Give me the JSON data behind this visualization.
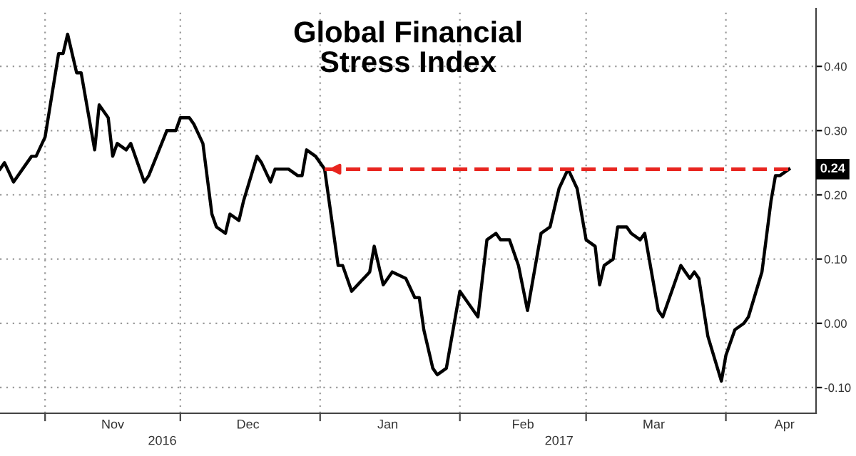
{
  "chart_data": {
    "type": "line",
    "title": "Global Financial\nStress Index",
    "series": [
      {
        "color": "#000000",
        "x": [
          "2016-10-22",
          "2016-10-23",
          "2016-10-25",
          "2016-10-27",
          "2016-10-29",
          "2016-10-30",
          "2016-11-01",
          "2016-11-04",
          "2016-11-05",
          "2016-11-06",
          "2016-11-08",
          "2016-11-09",
          "2016-11-11",
          "2016-11-12",
          "2016-11-13",
          "2016-11-15",
          "2016-11-16",
          "2016-11-17",
          "2016-11-19",
          "2016-11-20",
          "2016-11-23",
          "2016-11-24",
          "2016-11-28",
          "2016-11-30",
          "2016-12-01",
          "2016-12-03",
          "2016-12-04",
          "2016-12-06",
          "2016-12-08",
          "2016-12-09",
          "2016-12-11",
          "2016-12-12",
          "2016-12-14",
          "2016-12-15",
          "2016-12-18",
          "2016-12-19",
          "2016-12-21",
          "2016-12-22",
          "2016-12-25",
          "2016-12-27",
          "2016-12-28",
          "2016-12-29",
          "2016-12-31",
          "2017-01-02",
          "2017-01-05",
          "2017-01-06",
          "2017-01-08",
          "2017-01-12",
          "2017-01-13",
          "2017-01-15",
          "2017-01-17",
          "2017-01-20",
          "2017-01-22",
          "2017-01-23",
          "2017-01-24",
          "2017-01-26",
          "2017-01-27",
          "2017-01-29",
          "2017-02-01",
          "2017-02-02",
          "2017-02-05",
          "2017-02-07",
          "2017-02-09",
          "2017-02-10",
          "2017-02-12",
          "2017-02-14",
          "2017-02-16",
          "2017-02-19",
          "2017-02-21",
          "2017-02-23",
          "2017-02-25",
          "2017-02-27",
          "2017-03-01",
          "2017-03-03",
          "2017-03-04",
          "2017-03-05",
          "2017-03-07",
          "2017-03-08",
          "2017-03-10",
          "2017-03-11",
          "2017-03-13",
          "2017-03-14",
          "2017-03-17",
          "2017-03-18",
          "2017-03-22",
          "2017-03-24",
          "2017-03-25",
          "2017-03-26",
          "2017-03-28",
          "2017-03-31",
          "2017-04-01",
          "2017-04-03",
          "2017-04-05",
          "2017-04-06",
          "2017-04-09",
          "2017-04-11",
          "2017-04-12",
          "2017-04-13",
          "2017-04-15"
        ],
        "values": [
          0.24,
          0.25,
          0.22,
          0.24,
          0.26,
          0.26,
          0.29,
          0.42,
          0.42,
          0.45,
          0.39,
          0.39,
          0.31,
          0.27,
          0.34,
          0.32,
          0.26,
          0.28,
          0.27,
          0.28,
          0.22,
          0.23,
          0.3,
          0.3,
          0.32,
          0.32,
          0.31,
          0.28,
          0.17,
          0.15,
          0.14,
          0.17,
          0.16,
          0.19,
          0.26,
          0.25,
          0.22,
          0.24,
          0.24,
          0.23,
          0.23,
          0.27,
          0.26,
          0.24,
          0.09,
          0.09,
          0.05,
          0.08,
          0.12,
          0.06,
          0.08,
          0.07,
          0.04,
          0.04,
          -0.01,
          -0.07,
          -0.08,
          -0.07,
          0.05,
          0.04,
          0.01,
          0.13,
          0.14,
          0.13,
          0.13,
          0.09,
          0.02,
          0.14,
          0.15,
          0.21,
          0.24,
          0.21,
          0.13,
          0.12,
          0.06,
          0.09,
          0.1,
          0.15,
          0.15,
          0.14,
          0.13,
          0.14,
          0.02,
          0.01,
          0.09,
          0.07,
          0.08,
          0.07,
          -0.02,
          -0.09,
          -0.05,
          -0.01,
          0.0,
          0.01,
          0.08,
          0.19,
          0.23,
          0.23,
          0.24
        ]
      },
      {
        "color": "#e8251f",
        "line_style": "dashed",
        "x": [
          "2017-01-02",
          "2017-04-15"
        ],
        "values": [
          0.24,
          0.24
        ]
      }
    ],
    "annotations": [
      {
        "text": "0.24",
        "x": "2017-04-15",
        "y": 0.24
      }
    ],
    "xlim": [
      "2016-10-22",
      "2017-04-21"
    ],
    "xticks": [
      {
        "value": "2016-11-01",
        "label": null
      },
      {
        "value": "2016-11-16",
        "label": "Nov"
      },
      {
        "value": "2016-12-01",
        "label": null
      },
      {
        "value": "2016-12-16",
        "label": "Dec"
      },
      {
        "value": "2017-01-01",
        "label": null
      },
      {
        "value": "2017-01-16",
        "label": "Jan"
      },
      {
        "value": "2017-02-01",
        "label": null
      },
      {
        "value": "2017-02-15",
        "label": "Feb"
      },
      {
        "value": "2017-03-01",
        "label": null
      },
      {
        "value": "2017-03-16",
        "label": "Mar"
      },
      {
        "value": "2017-04-01",
        "label": null
      },
      {
        "value": "2017-04-14",
        "label": "Apr"
      }
    ],
    "x2lim": [
      "2016-10-22",
      "2017-04-21"
    ],
    "x2ticks": [
      {
        "value": "2016-11-27",
        "label": "2016"
      },
      {
        "value": "2017-02-23",
        "label": "2017"
      }
    ],
    "ylim": [
      -0.14,
      0.49
    ],
    "yticks": [
      {
        "value": -0.1,
        "label": "-0.10"
      },
      {
        "value": 0.0,
        "label": "0.00"
      },
      {
        "value": 0.1,
        "label": "0.10"
      },
      {
        "value": 0.2,
        "label": "0.20"
      },
      {
        "value": 0.3,
        "label": "0.30"
      },
      {
        "value": 0.4,
        "label": "0.40"
      }
    ],
    "grid": true,
    "marker": "none",
    "line_style": "solid"
  }
}
